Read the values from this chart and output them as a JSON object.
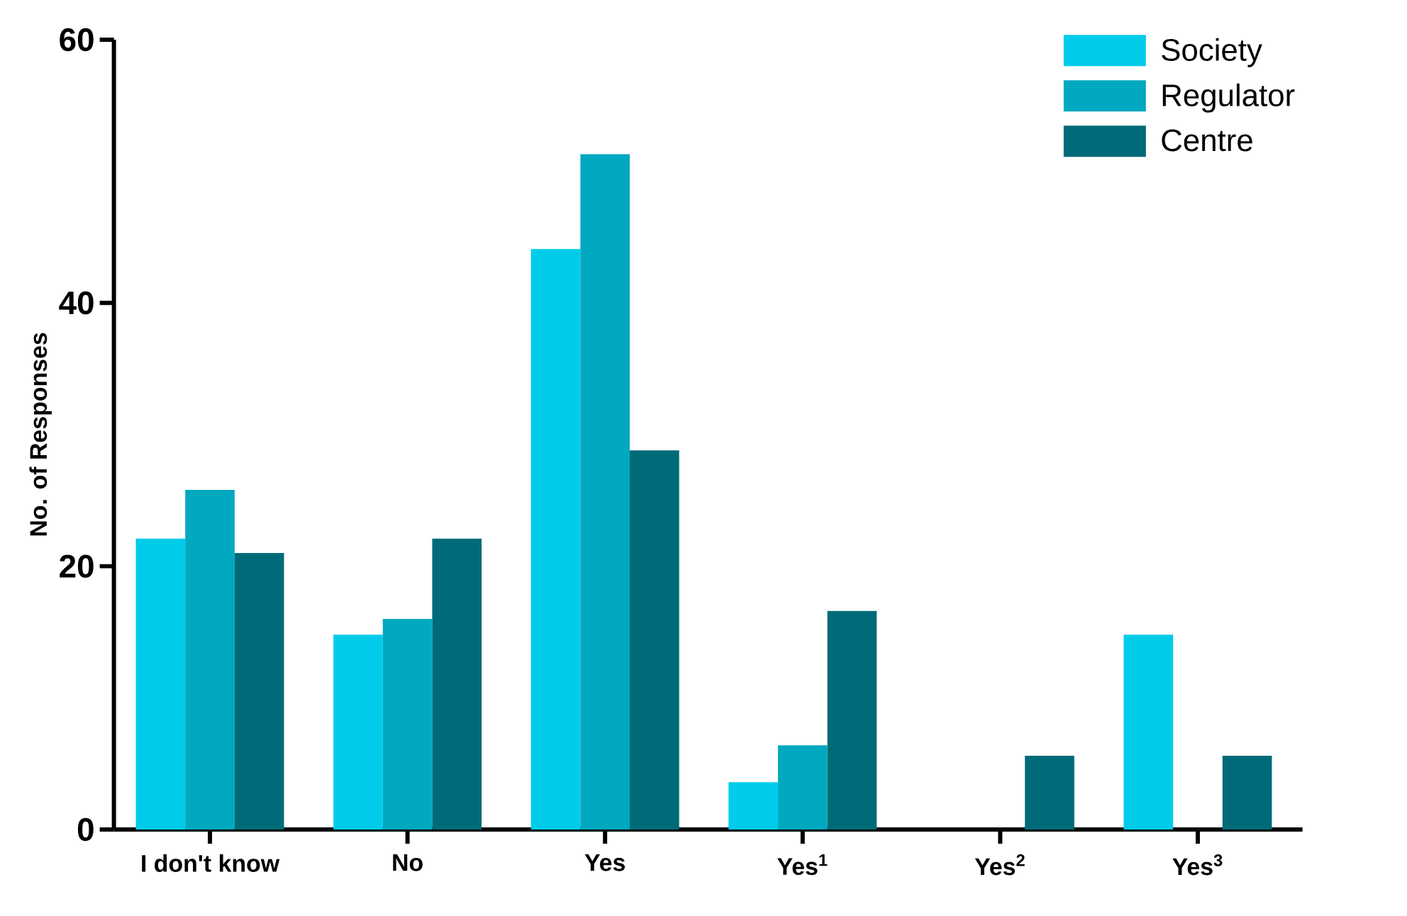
{
  "chart_data": {
    "type": "bar",
    "ylabel": "No. of  Responses",
    "categories": [
      "I don't know",
      "No",
      "Yes",
      "Yes$^{1}$",
      "Yes$^{2}$",
      "Yes$^{3}$"
    ],
    "series": [
      {
        "name": "Society",
        "color": "#00ccea",
        "values": [
          22.1,
          14.8,
          44.1,
          3.6,
          0,
          14.8
        ]
      },
      {
        "name": "Regulator",
        "color": "#00a8c0",
        "values": [
          25.8,
          16.0,
          51.3,
          6.4,
          0,
          0
        ]
      },
      {
        "name": "Centre",
        "color": "#006b78",
        "values": [
          21.0,
          22.1,
          28.8,
          16.6,
          5.6,
          5.6
        ]
      }
    ],
    "ylim": [
      0,
      60
    ],
    "yticks": [
      0,
      20,
      40,
      60
    ],
    "legend": "top right",
    "grid": false
  }
}
